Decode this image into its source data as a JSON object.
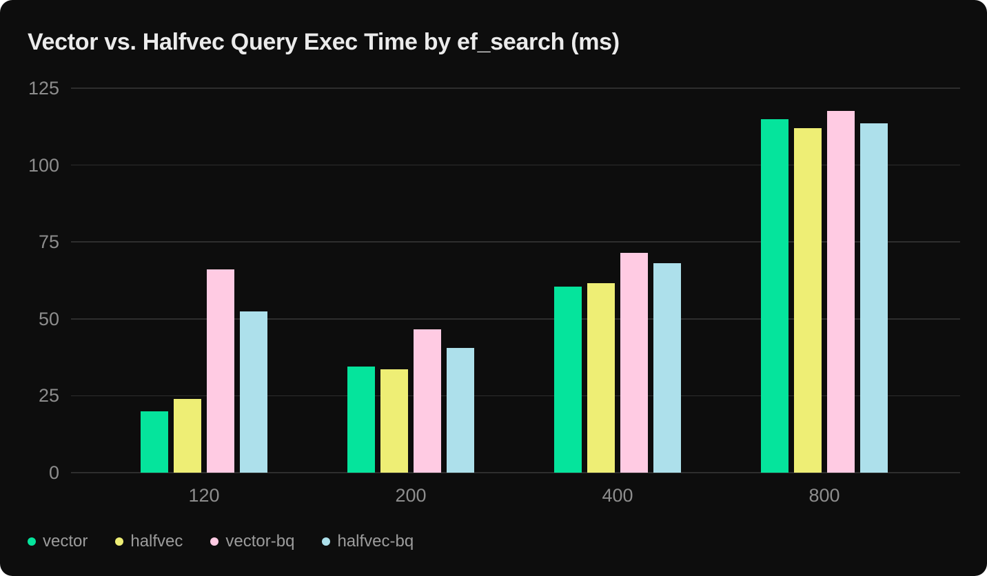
{
  "card": {
    "background_color": "#0d0d0d",
    "page_background_color": "#ffffff",
    "gridline_color": "#2e2e2e",
    "title_color": "#ebebeb",
    "tick_label_color": "#8d8d8d",
    "legend_label_color": "#9c9c9c"
  },
  "chart_data": {
    "type": "bar",
    "title": "Vector vs. Halfvec Query Exec Time by ef_search (ms)",
    "xlabel": "",
    "ylabel": "",
    "categories": [
      "120",
      "200",
      "400",
      "800"
    ],
    "series": [
      {
        "name": "vector",
        "color": "#05e49c",
        "values": [
          20,
          34.5,
          60.5,
          115
        ]
      },
      {
        "name": "halfvec",
        "color": "#eeee75",
        "values": [
          24,
          33.5,
          61.5,
          112
        ]
      },
      {
        "name": "vector-bq",
        "color": "#ffcbe3",
        "values": [
          66,
          46.5,
          71.5,
          117.5
        ]
      },
      {
        "name": "halfvec-bq",
        "color": "#ade0eb",
        "values": [
          52.5,
          40.5,
          68,
          113.5
        ]
      }
    ],
    "ylim": [
      0,
      125
    ],
    "yticks": [
      0,
      25,
      50,
      75,
      100,
      125
    ],
    "grid": true,
    "legend_position": "bottom-left"
  }
}
